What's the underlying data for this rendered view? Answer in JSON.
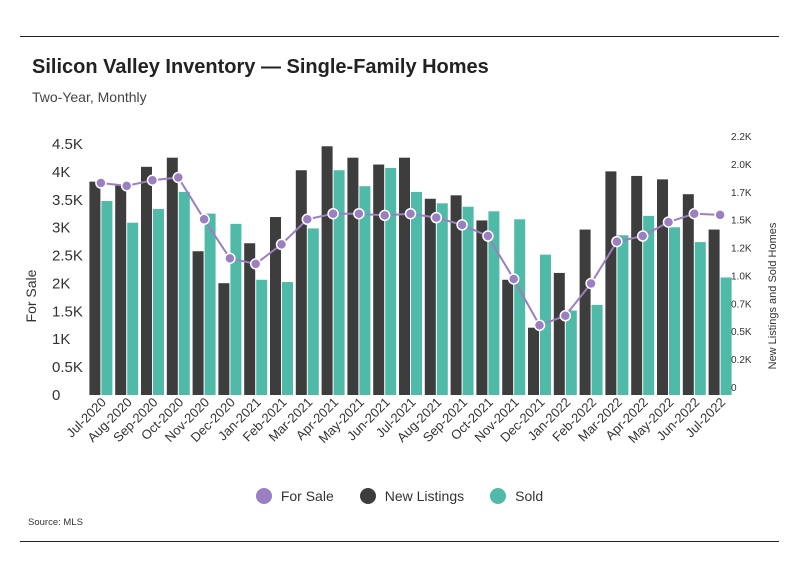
{
  "title": "Silicon Valley Inventory — Single-Family Homes",
  "subtitle": "Two-Year, Monthly",
  "source": "Source:  MLS",
  "colors": {
    "for_sale": "#9b7fc0",
    "new_listings": "#3d3d3d",
    "sold": "#4fbaa8"
  },
  "chart_data": {
    "type": "bar",
    "categories": [
      "Jul-2020",
      "Aug-2020",
      "Sep-2020",
      "Oct-2020",
      "Nov-2020",
      "Dec-2020",
      "Jan-2021",
      "Feb-2021",
      "Mar-2021",
      "Apr-2021",
      "May-2021",
      "Jun-2021",
      "Jul-2021",
      "Aug-2021",
      "Sep-2021",
      "Oct-2021",
      "Nov-2021",
      "Dec-2021",
      "Jan-2022",
      "Feb-2022",
      "Mar-2022",
      "Apr-2022",
      "May-2022",
      "Jun-2022",
      "Jul-2022"
    ],
    "ylabel": "For Sale",
    "y2label": "New Listings and Sold Homes",
    "ylim": [
      0,
      4500
    ],
    "y2lim": [
      0,
      2200
    ],
    "y_ticks": [
      "0",
      "0.5K",
      "1K",
      "1.5K",
      "2K",
      "2.5K",
      "3K",
      "3.5K",
      "4K",
      "4.5K"
    ],
    "y2_ticks": [
      "0",
      "0.2K",
      "0.5K",
      "0.7K",
      "1.0K",
      "1.2K",
      "1.5K",
      "1.7K",
      "2.0K",
      "2.2K"
    ],
    "series": [
      {
        "name": "For Sale",
        "kind": "line",
        "axis": "left",
        "values": [
          3800,
          3750,
          3850,
          3900,
          3150,
          2450,
          2350,
          2700,
          3150,
          3250,
          3250,
          3220,
          3250,
          3180,
          3050,
          2850,
          2080,
          1250,
          1420,
          2000,
          2750,
          2850,
          3100,
          3250,
          3230
        ]
      },
      {
        "name": "New Listings",
        "kind": "bar",
        "axis": "right",
        "values": [
          1870,
          1840,
          2000,
          2080,
          1260,
          980,
          1330,
          1560,
          1970,
          2180,
          2080,
          2020,
          2080,
          1720,
          1750,
          1530,
          1010,
          590,
          1070,
          1450,
          1960,
          1920,
          1890,
          1760,
          1450
        ]
      },
      {
        "name": "Sold",
        "kind": "bar",
        "axis": "right",
        "values": [
          1700,
          1510,
          1630,
          1780,
          1590,
          1500,
          1010,
          990,
          1460,
          1970,
          1830,
          1990,
          1780,
          1680,
          1650,
          1610,
          1540,
          1230,
          740,
          790,
          1400,
          1570,
          1470,
          1340,
          1030
        ]
      }
    ],
    "legend": {
      "position": "bottom",
      "labels": [
        "For Sale",
        "New Listings",
        "Sold"
      ]
    }
  }
}
